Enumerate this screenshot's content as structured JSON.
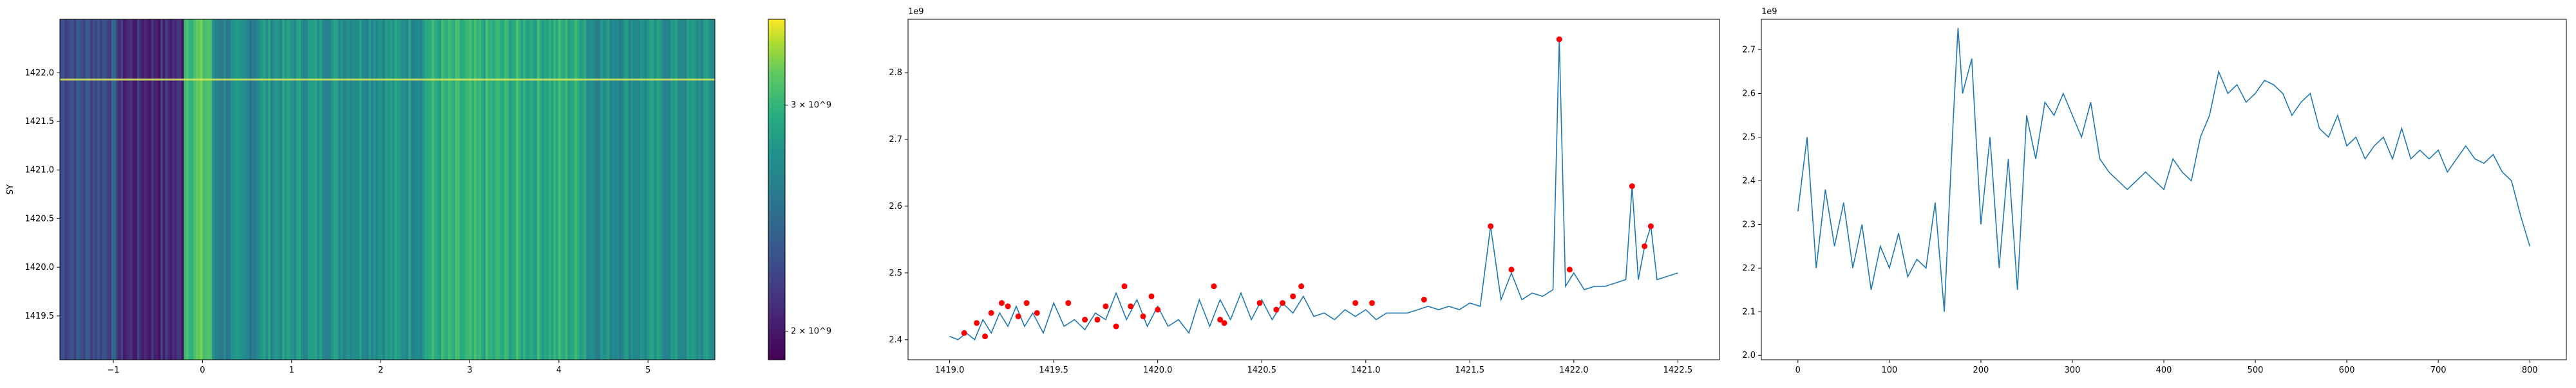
{
  "chart_data": [
    {
      "type": "heatmap",
      "ylabel": "SY",
      "xlabel": "",
      "xlim": [
        -1.6,
        5.75
      ],
      "ylim": [
        1419.05,
        1422.55
      ],
      "x_ticks": [
        "−1",
        "0",
        "1",
        "2",
        "3",
        "4",
        "5"
      ],
      "x_tick_values": [
        -1,
        0,
        1,
        2,
        3,
        4,
        5
      ],
      "y_ticks": [
        "1419.5",
        "1420.0",
        "1420.5",
        "1421.0",
        "1421.5",
        "1422.0"
      ],
      "y_tick_values": [
        1419.5,
        1420.0,
        1420.5,
        1421.0,
        1421.5,
        1422.0
      ],
      "colormap": "viridis",
      "colorbar": {
        "scale": "log",
        "range": [
          1900000000.0,
          3500000000.0
        ],
        "tick_labels": [
          "2 × 10^9",
          "3 × 10^9"
        ],
        "tick_values": [
          2000000000.0,
          3000000000.0
        ]
      },
      "bright_row_y": 1421.93
    },
    {
      "type": "line",
      "offset_label": "1e9",
      "xlim": [
        1418.8,
        1422.7
      ],
      "ylim": [
        2.37,
        2.88
      ],
      "x_ticks": [
        "1419.0",
        "1419.5",
        "1420.0",
        "1420.5",
        "1421.0",
        "1421.5",
        "1422.0",
        "1422.5"
      ],
      "x_tick_values": [
        1419.0,
        1419.5,
        1420.0,
        1420.5,
        1421.0,
        1421.5,
        1422.0,
        1422.5
      ],
      "y_ticks": [
        "2.4",
        "2.5",
        "2.6",
        "2.7",
        "2.8"
      ],
      "y_tick_values": [
        2.4,
        2.5,
        2.6,
        2.7,
        2.8
      ],
      "series": [
        {
          "x": [
            1419.0,
            1419.04,
            1419.08,
            1419.12,
            1419.16,
            1419.2,
            1419.24,
            1419.28,
            1419.32,
            1419.36,
            1419.4,
            1419.45,
            1419.5,
            1419.55,
            1419.6,
            1419.65,
            1419.7,
            1419.75,
            1419.8,
            1419.85,
            1419.9,
            1419.95,
            1420.0,
            1420.05,
            1420.1,
            1420.15,
            1420.2,
            1420.25,
            1420.3,
            1420.35,
            1420.4,
            1420.45,
            1420.5,
            1420.55,
            1420.6,
            1420.65,
            1420.7,
            1420.75,
            1420.8,
            1420.85,
            1420.9,
            1420.95,
            1421.0,
            1421.05,
            1421.1,
            1421.15,
            1421.2,
            1421.25,
            1421.3,
            1421.35,
            1421.4,
            1421.45,
            1421.5,
            1421.55,
            1421.6,
            1421.65,
            1421.7,
            1421.75,
            1421.8,
            1421.85,
            1421.9,
            1421.93,
            1421.96,
            1422.0,
            1422.05,
            1422.1,
            1422.15,
            1422.2,
            1422.25,
            1422.28,
            1422.31,
            1422.34,
            1422.37,
            1422.4,
            1422.45,
            1422.5
          ],
          "values": [
            2.405,
            2.4,
            2.41,
            2.4,
            2.43,
            2.41,
            2.44,
            2.42,
            2.45,
            2.42,
            2.44,
            2.41,
            2.455,
            2.42,
            2.43,
            2.415,
            2.44,
            2.43,
            2.47,
            2.43,
            2.46,
            2.42,
            2.45,
            2.42,
            2.43,
            2.41,
            2.46,
            2.42,
            2.46,
            2.43,
            2.47,
            2.43,
            2.46,
            2.43,
            2.455,
            2.44,
            2.465,
            2.435,
            2.44,
            2.43,
            2.445,
            2.435,
            2.445,
            2.43,
            2.44,
            2.44,
            2.44,
            2.445,
            2.45,
            2.445,
            2.45,
            2.445,
            2.455,
            2.45,
            2.57,
            2.46,
            2.5,
            2.46,
            2.47,
            2.465,
            2.475,
            2.85,
            2.48,
            2.5,
            2.475,
            2.48,
            2.48,
            2.485,
            2.49,
            2.63,
            2.49,
            2.54,
            2.57,
            2.49,
            2.495,
            2.5
          ]
        }
      ],
      "peaks": {
        "x": [
          1419.07,
          1419.13,
          1419.17,
          1419.2,
          1419.25,
          1419.28,
          1419.33,
          1419.37,
          1419.42,
          1419.57,
          1419.65,
          1419.71,
          1419.75,
          1419.8,
          1419.84,
          1419.87,
          1419.93,
          1419.97,
          1420.0,
          1420.27,
          1420.3,
          1420.32,
          1420.49,
          1420.57,
          1420.6,
          1420.65,
          1420.69,
          1420.95,
          1421.03,
          1421.28,
          1421.6,
          1421.7,
          1421.93,
          1421.98,
          1422.28,
          1422.34,
          1422.37
        ],
        "values": [
          2.41,
          2.425,
          2.405,
          2.44,
          2.455,
          2.45,
          2.435,
          2.455,
          2.44,
          2.455,
          2.43,
          2.43,
          2.45,
          2.42,
          2.48,
          2.45,
          2.435,
          2.465,
          2.445,
          2.48,
          2.43,
          2.425,
          2.455,
          2.445,
          2.455,
          2.465,
          2.48,
          2.455,
          2.455,
          2.46,
          2.57,
          2.505,
          2.85,
          2.505,
          2.63,
          2.54,
          2.57
        ],
        "color": "#ff0000"
      }
    },
    {
      "type": "line",
      "offset_label": "1e9",
      "xlim": [
        -40,
        840
      ],
      "ylim": [
        1.99,
        2.77
      ],
      "x_ticks": [
        "0",
        "100",
        "200",
        "300",
        "400",
        "500",
        "600",
        "700",
        "800"
      ],
      "x_tick_values": [
        0,
        100,
        200,
        300,
        400,
        500,
        600,
        700,
        800
      ],
      "y_ticks": [
        "2.0",
        "2.1",
        "2.2",
        "2.3",
        "2.4",
        "2.5",
        "2.6",
        "2.7"
      ],
      "y_tick_values": [
        2.0,
        2.1,
        2.2,
        2.3,
        2.4,
        2.5,
        2.6,
        2.7
      ],
      "series": [
        {
          "x": [
            0,
            10,
            20,
            30,
            40,
            50,
            60,
            70,
            80,
            90,
            100,
            110,
            120,
            130,
            140,
            150,
            160,
            170,
            175,
            180,
            190,
            200,
            210,
            220,
            230,
            240,
            250,
            260,
            270,
            280,
            290,
            300,
            310,
            320,
            330,
            340,
            350,
            360,
            370,
            380,
            390,
            400,
            410,
            420,
            430,
            440,
            450,
            460,
            470,
            480,
            490,
            500,
            510,
            520,
            530,
            540,
            550,
            560,
            570,
            580,
            590,
            600,
            610,
            620,
            630,
            640,
            650,
            660,
            670,
            680,
            690,
            700,
            710,
            720,
            730,
            740,
            750,
            760,
            770,
            780,
            790,
            800
          ],
          "values": [
            2.33,
            2.5,
            2.2,
            2.38,
            2.25,
            2.35,
            2.2,
            2.3,
            2.15,
            2.25,
            2.2,
            2.28,
            2.18,
            2.22,
            2.2,
            2.35,
            2.1,
            2.55,
            2.75,
            2.6,
            2.68,
            2.3,
            2.5,
            2.2,
            2.45,
            2.15,
            2.55,
            2.45,
            2.58,
            2.55,
            2.6,
            2.55,
            2.5,
            2.58,
            2.45,
            2.42,
            2.4,
            2.38,
            2.4,
            2.42,
            2.4,
            2.38,
            2.45,
            2.42,
            2.4,
            2.5,
            2.55,
            2.65,
            2.6,
            2.62,
            2.58,
            2.6,
            2.63,
            2.62,
            2.6,
            2.55,
            2.58,
            2.6,
            2.52,
            2.5,
            2.55,
            2.48,
            2.5,
            2.45,
            2.48,
            2.5,
            2.45,
            2.52,
            2.45,
            2.47,
            2.45,
            2.47,
            2.42,
            2.45,
            2.48,
            2.45,
            2.44,
            2.46,
            2.42,
            2.4,
            2.32,
            2.25
          ]
        }
      ]
    }
  ]
}
